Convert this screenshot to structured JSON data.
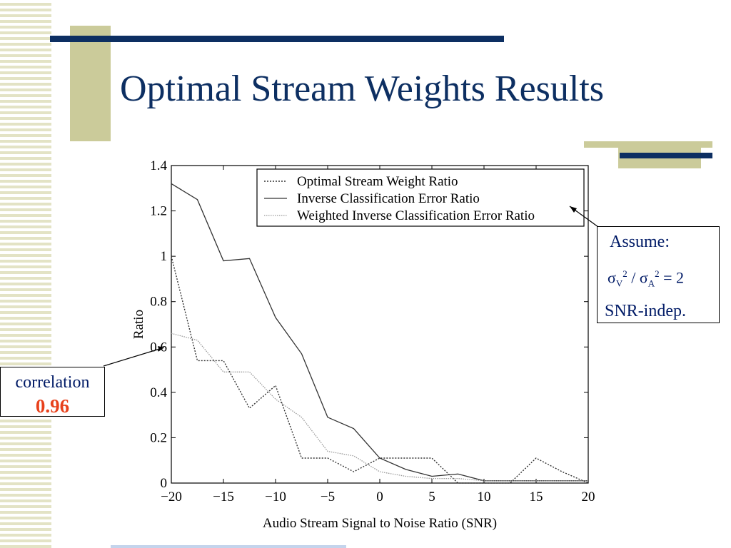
{
  "slide": {
    "title": "Optimal Stream Weights Results",
    "colors": {
      "navy": "#0d2f62",
      "olive": "#cbcb9a",
      "stripe": "#e3e3c5",
      "accent_red": "#e8411c",
      "annotation_text": "#001a66"
    }
  },
  "annotations": {
    "assume_label": "Assume:",
    "sigma_symbol": "σ",
    "sub_v": "V",
    "sub_a": "A",
    "sup_2": "2",
    "ratio_rhs": " / ",
    "equals": " = 2",
    "snr_indep": "SNR-indep.",
    "correlation_label": "correlation",
    "correlation_value": "0.96"
  },
  "chart_data": {
    "type": "line",
    "xlabel": "Audio Stream Signal to Noise Ratio (SNR)",
    "ylabel": "Ratio",
    "xlim": [
      -20,
      20
    ],
    "ylim": [
      0,
      1.4
    ],
    "xticks": [
      -20,
      -15,
      -10,
      -5,
      0,
      5,
      10,
      15,
      20
    ],
    "xtick_labels": [
      "−20",
      "−15",
      "−10",
      "−5",
      "0",
      "5",
      "10",
      "15",
      "20"
    ],
    "yticks": [
      0,
      0.2,
      0.4,
      0.6,
      0.8,
      1,
      1.2,
      1.4
    ],
    "ytick_labels": [
      "0",
      "0.2",
      "0.4",
      "0.6",
      "0.8",
      "1",
      "1.2",
      "1.4"
    ],
    "legend_position": "top-right",
    "x": [
      -20,
      -17.5,
      -15,
      -12.5,
      -10,
      -7.5,
      -5,
      -2.5,
      0,
      2.5,
      5,
      7.5,
      10,
      12.5,
      15,
      17.5,
      20
    ],
    "series": [
      {
        "name": "Optimal Stream Weight Ratio",
        "style": "dotted",
        "values": [
          1.0,
          0.54,
          0.54,
          0.33,
          0.43,
          0.11,
          0.11,
          0.05,
          0.11,
          0.11,
          0.11,
          0.0,
          0.0,
          0.0,
          0.11,
          0.05,
          0.0
        ]
      },
      {
        "name": "Inverse Classification Error Ratio",
        "style": "solid",
        "values": [
          1.32,
          1.25,
          0.98,
          0.99,
          0.73,
          0.57,
          0.29,
          0.24,
          0.11,
          0.06,
          0.03,
          0.04,
          0.01,
          0.01,
          0.01,
          0.01,
          0.01
        ]
      },
      {
        "name": "Weighted Inverse Classification Error Ratio",
        "style": "light-dotted",
        "values": [
          0.66,
          0.63,
          0.49,
          0.49,
          0.37,
          0.29,
          0.14,
          0.12,
          0.05,
          0.03,
          0.02,
          0.02,
          0.01,
          0.01,
          0.01,
          0.01,
          0.01
        ]
      }
    ]
  }
}
